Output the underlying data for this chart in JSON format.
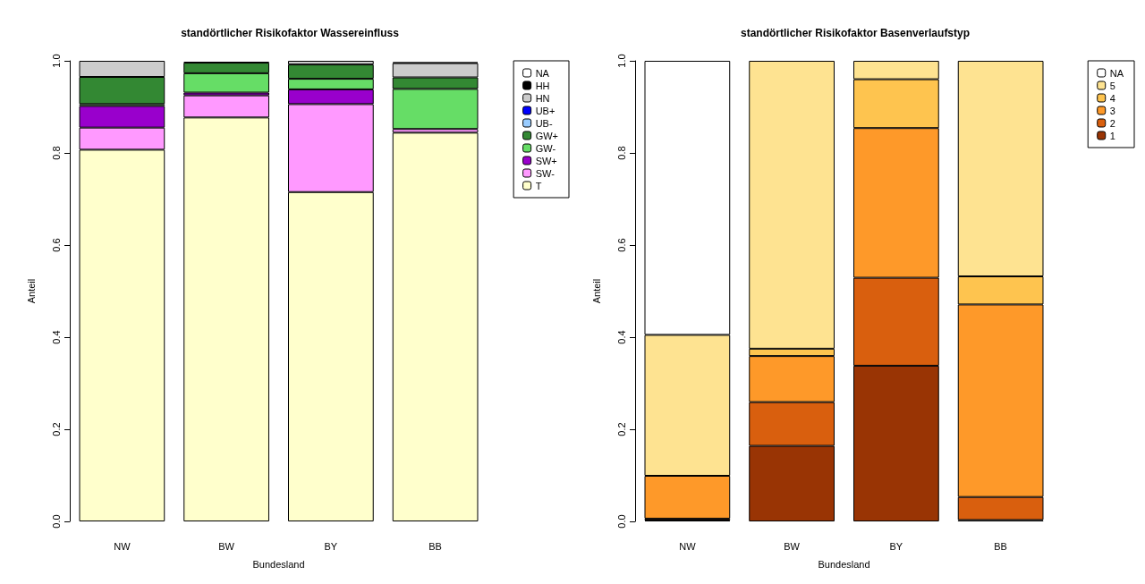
{
  "chart_data": [
    {
      "type": "bar",
      "stacked": true,
      "title": "standörtlicher Risikofaktor Wassereinfluss",
      "xlabel": "Bundesland",
      "ylabel": "Anteil",
      "categories": [
        "NW",
        "BW",
        "BY",
        "BB"
      ],
      "ylim": [
        0,
        1
      ],
      "yticks": [
        {
          "value": 0,
          "label": "0.0"
        },
        {
          "value": 0.2,
          "label": "0.2"
        },
        {
          "value": 0.4,
          "label": "0.4"
        },
        {
          "value": 0.6,
          "label": "0.6"
        },
        {
          "value": 0.8,
          "label": "0.8"
        },
        {
          "value": 1,
          "label": "1.0"
        }
      ],
      "grid": false,
      "legend": "top right",
      "series": [
        {
          "name": "T",
          "color": "#ffffcc",
          "values": [
            0.807,
            0.877,
            0.715,
            0.844
          ]
        },
        {
          "name": "SW-",
          "color": "#ff99ff",
          "values": [
            0.048,
            0.048,
            0.191,
            0.008
          ]
        },
        {
          "name": "SW+",
          "color": "#9900cc",
          "values": [
            0.047,
            0.006,
            0.032,
            null
          ]
        },
        {
          "name": "GW-",
          "color": "#66dd66",
          "values": [
            0.004,
            0.042,
            0.023,
            0.087
          ]
        },
        {
          "name": "GW+",
          "color": "#338833",
          "values": [
            0.059,
            0.023,
            0.031,
            0.025
          ]
        },
        {
          "name": "UB-",
          "color": "#99ccff",
          "values": [
            0,
            0,
            0,
            0
          ]
        },
        {
          "name": "UB+",
          "color": "#0000ff",
          "values": [
            0,
            0,
            0,
            0
          ]
        },
        {
          "name": "HN",
          "color": "#cccccc",
          "values": [
            0.035,
            null,
            0.008,
            0.031
          ]
        },
        {
          "name": "HH",
          "color": "#000000",
          "values": [
            0,
            0.002,
            0,
            0.002
          ]
        },
        {
          "name": "NA",
          "color": "#ffffff",
          "values": [
            0,
            0,
            0,
            0
          ]
        }
      ]
    },
    {
      "type": "bar",
      "stacked": true,
      "title": "standörtlicher Risikofaktor Basenverlaufstyp",
      "xlabel": "Bundesland",
      "ylabel": "Anteil",
      "categories": [
        "NW",
        "BW",
        "BY",
        "BB"
      ],
      "ylim": [
        0,
        1
      ],
      "yticks": [
        {
          "value": 0,
          "label": "0.0"
        },
        {
          "value": 0.2,
          "label": "0.2"
        },
        {
          "value": 0.4,
          "label": "0.4"
        },
        {
          "value": 0.6,
          "label": "0.6"
        },
        {
          "value": 0.8,
          "label": "0.8"
        },
        {
          "value": 1,
          "label": "1.0"
        }
      ],
      "grid": false,
      "legend": "top right",
      "series": [
        {
          "name": "1",
          "color": "#993404",
          "values": [
            0.002,
            0.164,
            0.338,
            0.003
          ]
        },
        {
          "name": "2",
          "color": "#d95f0e",
          "values": [
            0.004,
            0.095,
            0.191,
            0.05
          ]
        },
        {
          "name": "3",
          "color": "#fe9929",
          "values": [
            0.093,
            0.1,
            0.325,
            0.418
          ]
        },
        {
          "name": "4",
          "color": "#fec44f",
          "values": [
            0,
            0.016,
            0.106,
            0.061
          ]
        },
        {
          "name": "5",
          "color": "#fee391",
          "values": [
            0.306,
            0.625,
            0.04,
            0.468
          ]
        },
        {
          "name": "NA",
          "color": "#ffffff",
          "values": [
            0.595,
            0,
            0,
            0
          ]
        }
      ]
    }
  ]
}
